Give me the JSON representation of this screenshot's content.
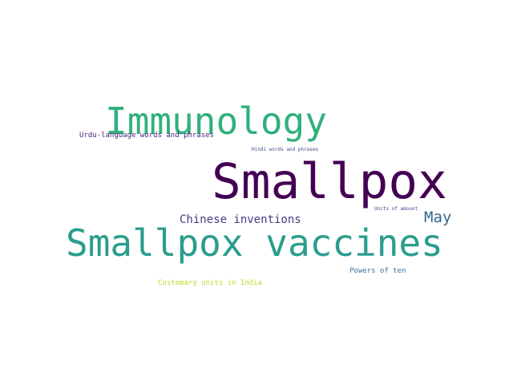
{
  "word_cloud": {
    "words": [
      {
        "text": "Smallpox",
        "color": "#440154"
      },
      {
        "text": "Smallpox vaccines",
        "color": "#2a9d8c"
      },
      {
        "text": "Immunology",
        "color": "#2fb17c"
      },
      {
        "text": "Chinese inventions",
        "color": "#443a83"
      },
      {
        "text": "May",
        "color": "#31688e"
      },
      {
        "text": "Urdu-language words and phrases",
        "color": "#48267c"
      },
      {
        "text": "Hindi words and phrases",
        "color": "#3d4a89"
      },
      {
        "text": "Units of amount",
        "color": "#404588"
      },
      {
        "text": "Powers of ten",
        "color": "#3b70a0"
      },
      {
        "text": "Customary units in India",
        "color": "#b5de2b"
      }
    ]
  }
}
